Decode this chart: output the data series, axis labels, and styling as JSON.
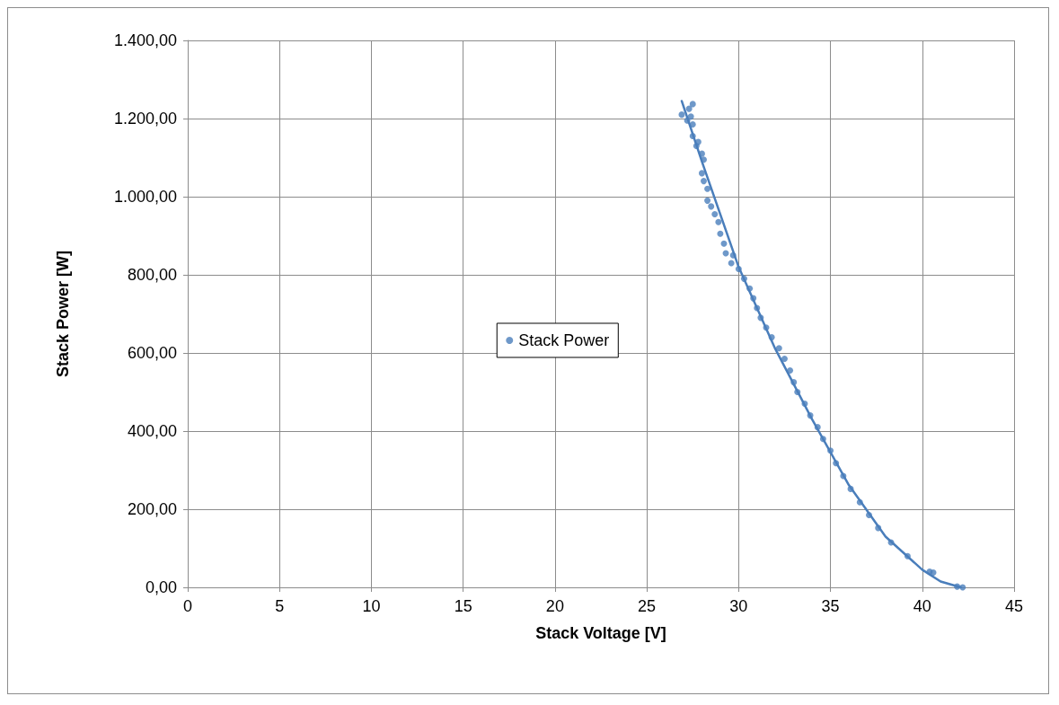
{
  "chart_data": {
    "type": "scatter",
    "xlabel": "Stack Voltage [V]",
    "ylabel": "Stack Power [W]",
    "xlim": [
      0,
      45
    ],
    "xticks": [
      0,
      5,
      10,
      15,
      20,
      25,
      30,
      35,
      40,
      45
    ],
    "ylim": [
      0,
      1400
    ],
    "yticks": [
      {
        "value": 0,
        "label": "0,00"
      },
      {
        "value": 200,
        "label": "200,00"
      },
      {
        "value": 400,
        "label": "400,00"
      },
      {
        "value": 600,
        "label": "600,00"
      },
      {
        "value": 800,
        "label": "800,00"
      },
      {
        "value": 1000,
        "label": "1.000,00"
      },
      {
        "value": 1200,
        "label": "1.200,00"
      },
      {
        "value": 1400,
        "label": "1.400,00"
      }
    ],
    "grid": true,
    "legend": "center",
    "marker": "circle",
    "series": [
      {
        "name": "Stack Power",
        "color": "#4a7ebb",
        "x": [
          27.5,
          27.3,
          26.9,
          27.2,
          27.4,
          27.5,
          27.5,
          27.7,
          27.8,
          28.0,
          28.1,
          28.0,
          28.1,
          28.3,
          28.3,
          28.5,
          28.7,
          28.9,
          29.0,
          29.2,
          29.3,
          29.6,
          29.7,
          30.0,
          30.3,
          30.6,
          30.8,
          31.0,
          31.2,
          31.5,
          31.8,
          32.2,
          32.5,
          32.8,
          33.0,
          33.2,
          33.6,
          33.9,
          34.3,
          34.6,
          35.0,
          35.3,
          35.7,
          36.1,
          36.6,
          37.1,
          37.6,
          38.3,
          39.2,
          40.4,
          40.6,
          41.9,
          42.2
        ],
        "values": [
          1237,
          1225,
          1210,
          1195,
          1205,
          1185,
          1155,
          1130,
          1140,
          1110,
          1095,
          1060,
          1040,
          1020,
          990,
          975,
          955,
          935,
          905,
          880,
          855,
          830,
          850,
          815,
          790,
          765,
          740,
          715,
          690,
          665,
          640,
          612,
          585,
          555,
          525,
          500,
          470,
          440,
          410,
          380,
          350,
          318,
          285,
          252,
          218,
          185,
          152,
          115,
          80,
          40,
          38,
          2,
          0
        ]
      },
      {
        "color": "#4a7ebb",
        "type": "line",
        "marker": "none",
        "x": [
          26.9,
          28,
          30,
          32,
          34,
          36,
          38,
          40,
          41,
          42.1
        ],
        "values": [
          1245,
          1090,
          820,
          610,
          430,
          262,
          130,
          45,
          15,
          0
        ]
      }
    ]
  }
}
